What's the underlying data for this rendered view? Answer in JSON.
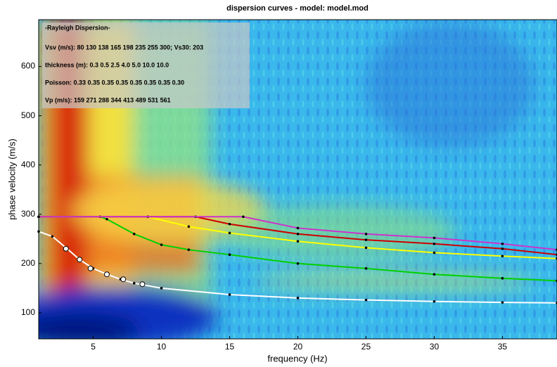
{
  "chart_data": {
    "type": "line",
    "title": "dispersion curves - model: model.mod",
    "x_label": "frequency (Hz)",
    "y_label": "phase velocity (m/s)",
    "xlim": [
      1,
      39
    ],
    "ylim": [
      47,
      695
    ],
    "xticks": [
      5,
      10,
      15,
      20,
      25,
      30,
      35
    ],
    "yticks": [
      100,
      200,
      300,
      400,
      500,
      600
    ],
    "annotations": [
      "-Rayleigh Dispersion-",
      "Vsv (m/s): 80  130  138  165  198  235  255  300; Vs30: 203",
      "thickness (m): 0.3    0.5    2.5    4.0    5.0   10.0   10.0",
      "Poisson: 0.33  0.35  0.35  0.35  0.35  0.35  0.35  0.30",
      "Vp (m/s): 159  271  288  344  413  489  531  561"
    ],
    "series": [
      {
        "color": "#ffffff",
        "style": "line",
        "x": [
          1,
          2,
          3,
          4,
          5,
          6,
          7,
          8,
          10,
          15,
          20,
          25,
          30,
          35,
          39
        ],
        "values": [
          265,
          255,
          232,
          208,
          190,
          178,
          168,
          160,
          150,
          137,
          130,
          126,
          123,
          121,
          120
        ]
      },
      {
        "color": "#00d000",
        "style": "line",
        "x": [
          1,
          5.5,
          6,
          8,
          10,
          12,
          15,
          20,
          25,
          30,
          35,
          39
        ],
        "values": [
          295,
          295,
          290,
          260,
          238,
          228,
          218,
          200,
          190,
          178,
          170,
          165
        ]
      },
      {
        "color": "#ffff00",
        "style": "line",
        "x": [
          1,
          9,
          12,
          15,
          20,
          25,
          30,
          35,
          39
        ],
        "values": [
          295,
          295,
          275,
          262,
          245,
          232,
          222,
          215,
          210
        ]
      },
      {
        "color": "#cc0000",
        "style": "line",
        "x": [
          1,
          12.5,
          15,
          20,
          25,
          30,
          35,
          39
        ],
        "values": [
          295,
          295,
          280,
          260,
          248,
          240,
          230,
          218
        ]
      },
      {
        "color": "#cc33cc",
        "style": "line",
        "x": [
          1,
          16,
          20,
          25,
          30,
          35,
          39
        ],
        "values": [
          295,
          295,
          272,
          260,
          252,
          240,
          228
        ]
      },
      {
        "color": "#ffffff",
        "style": "markers",
        "x": [
          3,
          4,
          4.8,
          6,
          7.2,
          8.6
        ],
        "values": [
          230,
          208,
          190,
          178,
          168,
          158
        ]
      }
    ]
  }
}
